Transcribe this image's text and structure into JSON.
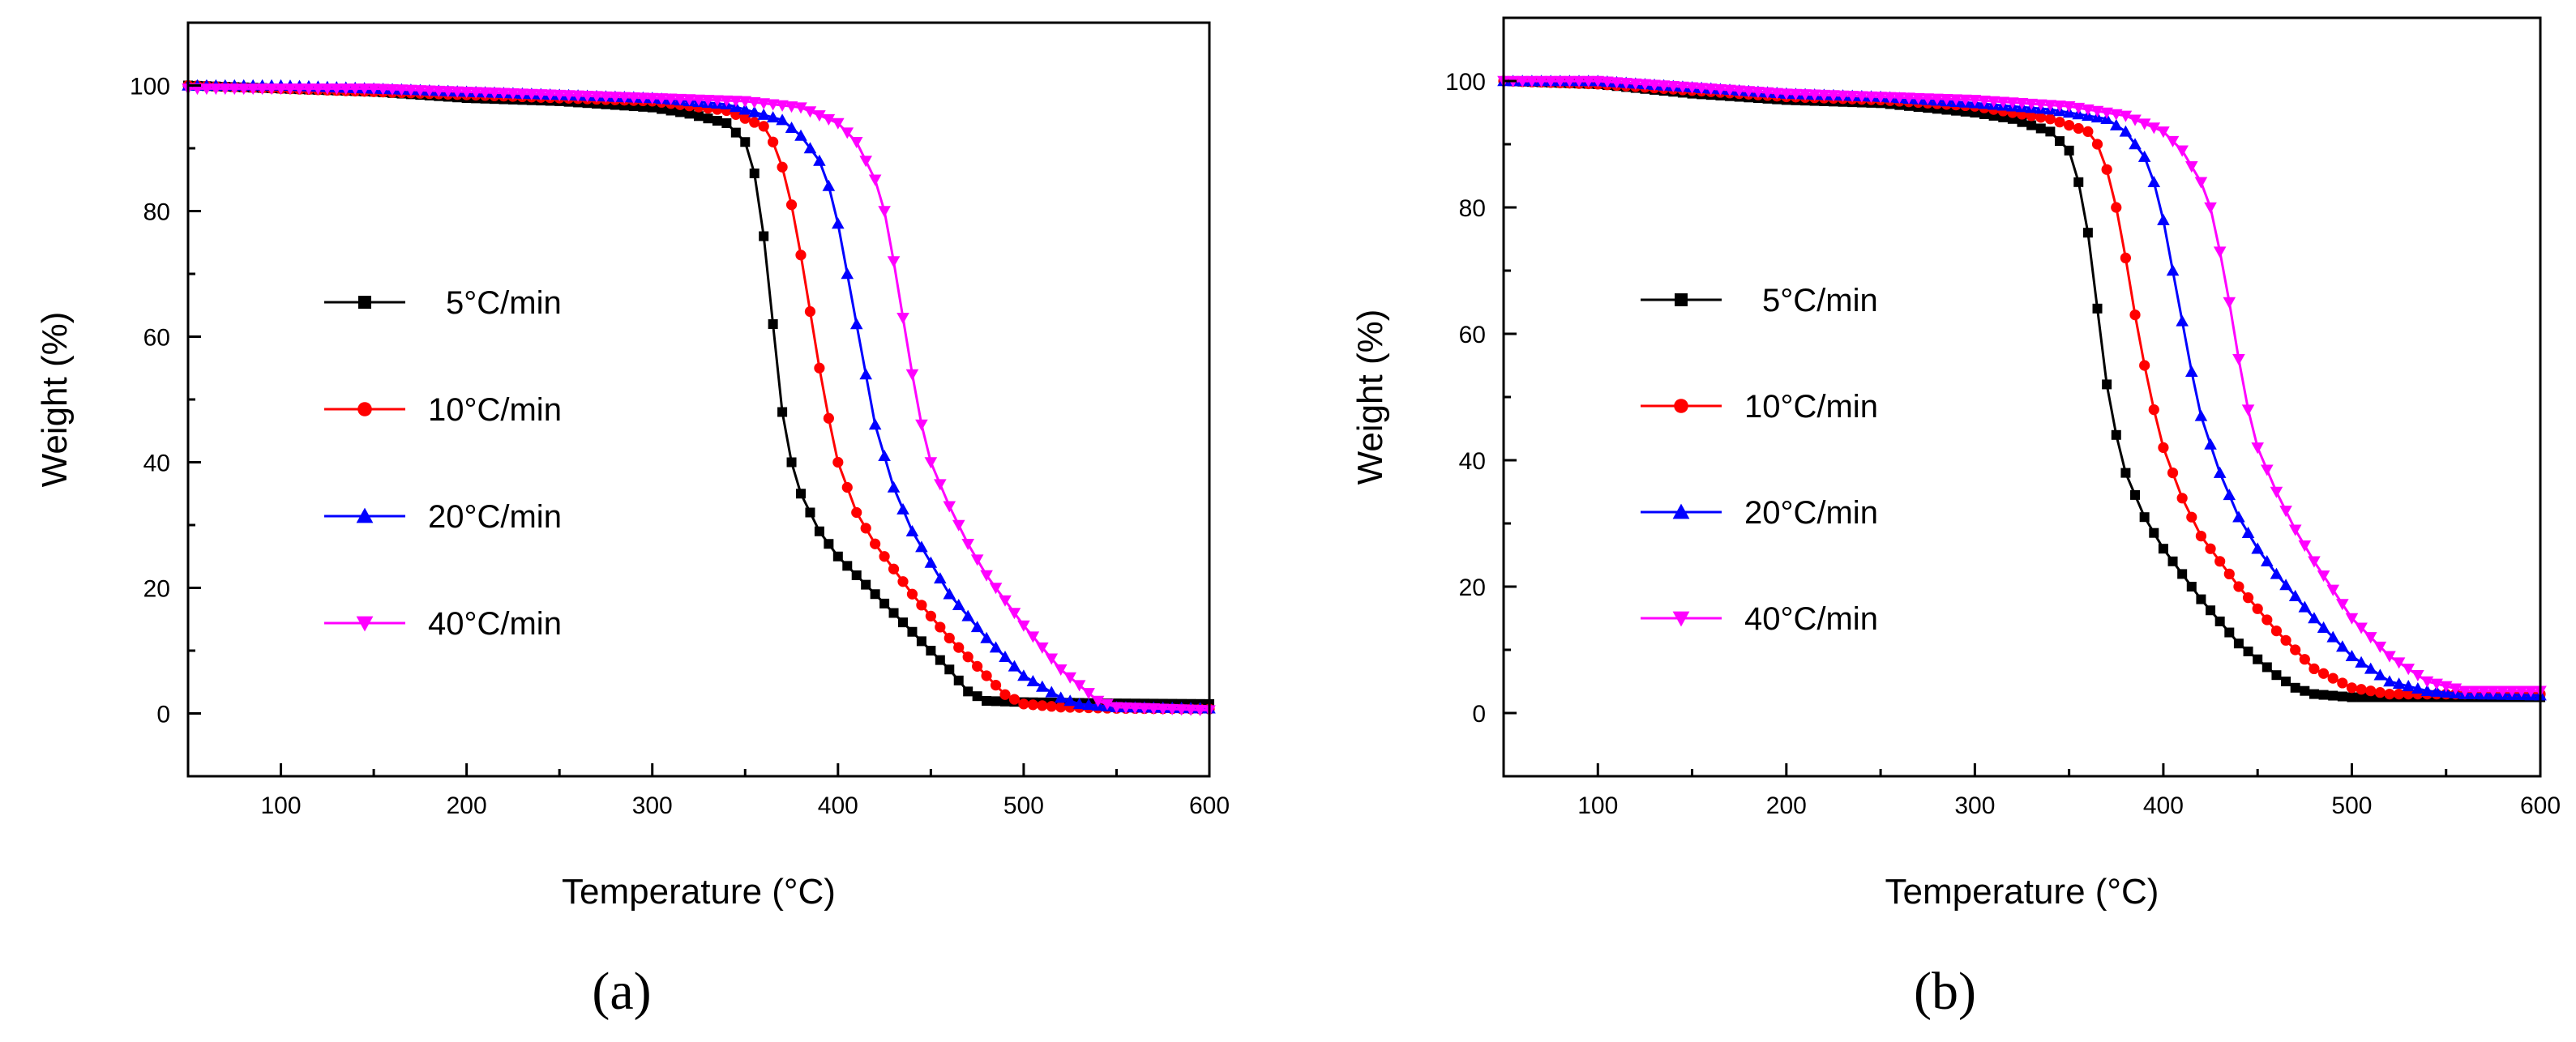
{
  "figure": {
    "panels": [
      "(a)",
      "(b)"
    ]
  },
  "chart_data": [
    {
      "type": "line",
      "panel_label": "(a)",
      "xlabel": "Temperature (°C)",
      "ylabel": "Weight (%)",
      "xlim": [
        50,
        600
      ],
      "ylim": [
        -10,
        110
      ],
      "xticks": [
        100,
        200,
        300,
        400,
        500,
        600
      ],
      "yticks": [
        0,
        20,
        40,
        60,
        80,
        100
      ],
      "grid": false,
      "legend_position": "center-left",
      "series": [
        {
          "name": "5°C/min",
          "color": "#000000",
          "marker": "square",
          "x": [
            50,
            100,
            150,
            200,
            250,
            300,
            320,
            340,
            350,
            355,
            360,
            365,
            370,
            375,
            380,
            390,
            400,
            420,
            440,
            460,
            470,
            480,
            500,
            550,
            600
          ],
          "y": [
            100,
            99.5,
            99,
            98,
            97.5,
            96.5,
            95.5,
            94,
            91,
            86,
            76,
            62,
            48,
            40,
            35,
            29,
            25,
            19,
            13,
            7,
            3.5,
            2,
            1.8,
            1.6,
            1.5
          ]
        },
        {
          "name": "10°C/min",
          "color": "#ff0000",
          "marker": "circle",
          "x": [
            50,
            100,
            150,
            200,
            250,
            300,
            340,
            360,
            365,
            370,
            375,
            380,
            385,
            390,
            395,
            400,
            410,
            420,
            440,
            460,
            480,
            490,
            500,
            520,
            550,
            600
          ],
          "y": [
            100,
            99.5,
            99,
            98.5,
            98,
            97.5,
            96,
            93.5,
            91,
            87,
            81,
            73,
            64,
            55,
            47,
            40,
            32,
            27,
            19,
            12,
            6,
            3,
            1.5,
            1,
            0.8,
            0.7
          ]
        },
        {
          "name": "20°C/min",
          "color": "#0000ff",
          "marker": "triangle-up",
          "x": [
            50,
            100,
            150,
            200,
            250,
            300,
            340,
            370,
            380,
            390,
            395,
            400,
            405,
            410,
            415,
            420,
            430,
            440,
            450,
            460,
            480,
            500,
            520,
            530,
            550,
            600
          ],
          "y": [
            100,
            100,
            99.5,
            99,
            98.5,
            98,
            97,
            94.5,
            92,
            88,
            84,
            78,
            70,
            62,
            54,
            46,
            36,
            29,
            24,
            19,
            12,
            6,
            2.5,
            1.5,
            1,
            0.8
          ]
        },
        {
          "name": "40°C/min",
          "color": "#ff00ff",
          "marker": "triangle-down",
          "x": [
            50,
            100,
            150,
            200,
            250,
            300,
            350,
            380,
            400,
            410,
            420,
            425,
            430,
            435,
            440,
            445,
            450,
            460,
            470,
            480,
            500,
            520,
            540,
            550,
            600
          ],
          "y": [
            99.5,
            99.5,
            99.5,
            99,
            98.5,
            98,
            97.5,
            96.5,
            94,
            91,
            85,
            80,
            72,
            63,
            54,
            46,
            40,
            33,
            27,
            22,
            14,
            7,
            2,
            1,
            0.5
          ]
        }
      ]
    },
    {
      "type": "line",
      "panel_label": "(b)",
      "xlabel": "Temperature (°C)",
      "ylabel": "Weight (%)",
      "xlim": [
        50,
        600
      ],
      "ylim": [
        -10,
        110
      ],
      "xticks": [
        100,
        200,
        300,
        400,
        500,
        600
      ],
      "yticks": [
        0,
        20,
        40,
        60,
        80,
        100
      ],
      "grid": false,
      "legend_position": "center-left",
      "series": [
        {
          "name": "5°C/min",
          "color": "#000000",
          "marker": "square",
          "x": [
            50,
            100,
            150,
            200,
            250,
            300,
            320,
            340,
            350,
            355,
            360,
            365,
            370,
            375,
            380,
            390,
            400,
            420,
            440,
            460,
            470,
            480,
            500,
            550,
            600
          ],
          "y": [
            100,
            99.5,
            98,
            97,
            96.5,
            95,
            94,
            92,
            89,
            84,
            76,
            64,
            52,
            44,
            38,
            31,
            26,
            18,
            11,
            6,
            4,
            3,
            2.5,
            2.5,
            2.5
          ]
        },
        {
          "name": "10°C/min",
          "color": "#ff0000",
          "marker": "circle",
          "x": [
            50,
            100,
            150,
            200,
            250,
            300,
            340,
            360,
            365,
            370,
            375,
            380,
            385,
            390,
            395,
            400,
            410,
            420,
            440,
            460,
            480,
            500,
            520,
            550,
            600
          ],
          "y": [
            100,
            99.5,
            98.5,
            97.5,
            97,
            96,
            94,
            92,
            90,
            86,
            80,
            72,
            63,
            55,
            48,
            42,
            34,
            28,
            20,
            13,
            7,
            4,
            3,
            3,
            3
          ]
        },
        {
          "name": "20°C/min",
          "color": "#0000ff",
          "marker": "triangle-up",
          "x": [
            50,
            100,
            150,
            200,
            250,
            300,
            340,
            370,
            380,
            390,
            395,
            400,
            405,
            410,
            415,
            420,
            430,
            440,
            450,
            460,
            480,
            500,
            520,
            540,
            560,
            600
          ],
          "y": [
            100,
            100,
            99,
            98,
            97.5,
            96.5,
            95.5,
            94,
            92,
            88,
            84,
            78,
            70,
            62,
            54,
            47,
            38,
            31,
            26,
            22,
            15,
            9,
            5,
            3.5,
            3,
            2.8
          ]
        },
        {
          "name": "40°C/min",
          "color": "#ff00ff",
          "marker": "triangle-down",
          "x": [
            50,
            100,
            150,
            200,
            250,
            300,
            350,
            380,
            400,
            410,
            420,
            425,
            430,
            435,
            440,
            445,
            450,
            460,
            470,
            480,
            500,
            520,
            540,
            560,
            600
          ],
          "y": [
            100,
            100,
            99,
            98,
            97.5,
            97,
            96,
            94.5,
            92,
            89,
            84,
            80,
            73,
            65,
            56,
            48,
            42,
            35,
            29,
            24,
            15,
            9,
            5,
            3.5,
            3.5
          ]
        }
      ]
    }
  ]
}
